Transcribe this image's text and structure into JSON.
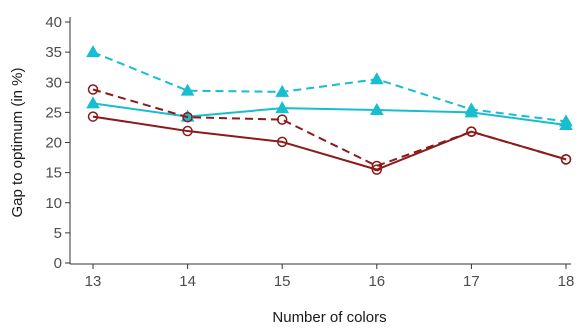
{
  "chart_data": {
    "type": "line",
    "title": "",
    "xlabel": "Number of colors",
    "ylabel": "Gap to optimum (in %)",
    "x": [
      13,
      14,
      15,
      16,
      17,
      18
    ],
    "x_tick_labels": [
      "13",
      "14",
      "15",
      "16",
      "17",
      "18"
    ],
    "xlim": [
      13,
      18
    ],
    "ylim": [
      0,
      40
    ],
    "y_ticks": [
      0,
      5,
      10,
      15,
      20,
      25,
      30,
      35,
      40
    ],
    "y_tick_labels": [
      "0",
      "5",
      "10",
      "15",
      "20",
      "25",
      "30",
      "35",
      "40"
    ],
    "grid": false,
    "legend": "none",
    "series": [
      {
        "color": "#17becf",
        "line_style": "dashed",
        "marker": "filled-triangle",
        "values": [
          35.0,
          28.6,
          28.4,
          30.5,
          25.5,
          23.5
        ]
      },
      {
        "color": "#17becf",
        "line_style": "solid",
        "marker": "filled-triangle",
        "values": [
          26.5,
          24.3,
          25.7,
          25.4,
          25.0,
          22.9
        ]
      },
      {
        "color": "#8b1a1a",
        "line_style": "dashed",
        "marker": "open-circle",
        "values": [
          28.8,
          24.2,
          23.8,
          16.1,
          21.8,
          17.2
        ]
      },
      {
        "color": "#8b1a1a",
        "line_style": "solid",
        "marker": "open-circle",
        "values": [
          24.3,
          21.9,
          20.1,
          15.5,
          21.8,
          17.2
        ]
      }
    ]
  }
}
